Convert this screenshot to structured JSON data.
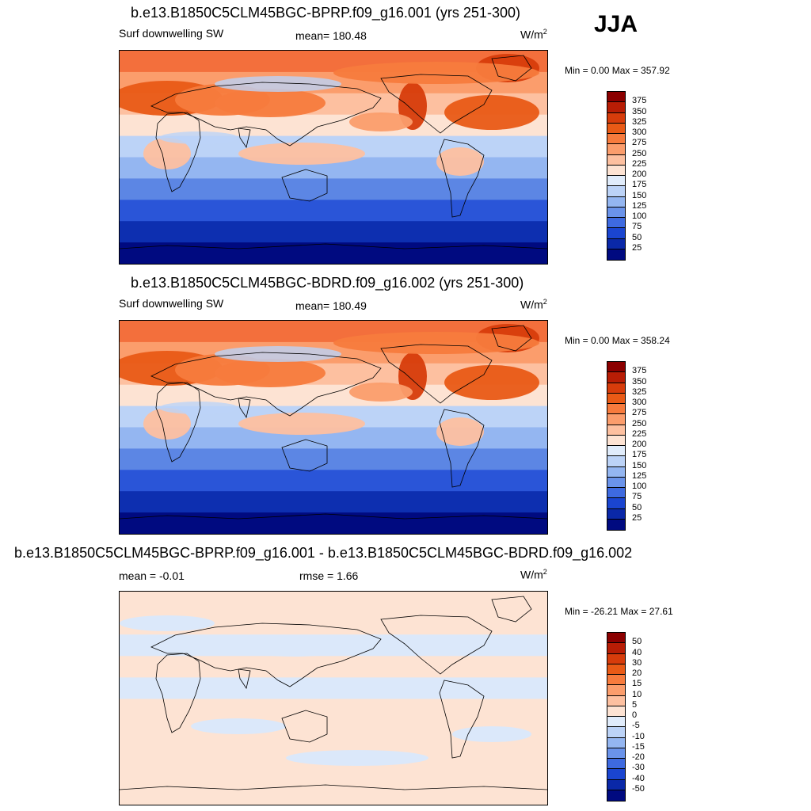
{
  "season": "JJA",
  "panels": [
    {
      "title": "b.e13.B1850C5CLM45BGC-BPRP.f09_g16.001 (yrs 251-300)",
      "left_label": "Surf downwelling SW",
      "mid_label": "mean= 180.48",
      "units_base": "W/m",
      "units_sup": "2",
      "minmax": "Min =   0.00 Max = 357.92",
      "ticks": [
        "375",
        "350",
        "325",
        "300",
        "275",
        "250",
        "225",
        "200",
        "175",
        "150",
        "125",
        "100",
        "75",
        "50",
        "25"
      ],
      "colors": [
        "#8b0000",
        "#b81d05",
        "#d73c0b",
        "#e95a16",
        "#f77b3d",
        "#fb9d6c",
        "#fdc0a0",
        "#fde3d3",
        "#e0ecfb",
        "#bcd3f7",
        "#94b6f1",
        "#6a93ea",
        "#3e6ae0",
        "#1a45d0",
        "#0a28a8",
        "#000a80"
      ],
      "bands": [
        "#f36f3c",
        "#fb9d6c",
        "#fdc0a0",
        "#fde3d3",
        "#bcd3f7",
        "#94b6f1",
        "#5c86e4",
        "#2a55d8",
        "#0d2fb0",
        "#000a80"
      ]
    },
    {
      "title": "b.e13.B1850C5CLM45BGC-BDRD.f09_g16.002 (yrs 251-300)",
      "left_label": "Surf downwelling SW",
      "mid_label": "mean= 180.49",
      "units_base": "W/m",
      "units_sup": "2",
      "minmax": "Min =   0.00 Max = 358.24",
      "ticks": [
        "375",
        "350",
        "325",
        "300",
        "275",
        "250",
        "225",
        "200",
        "175",
        "150",
        "125",
        "100",
        "75",
        "50",
        "25"
      ],
      "colors": [
        "#8b0000",
        "#b81d05",
        "#d73c0b",
        "#e95a16",
        "#f77b3d",
        "#fb9d6c",
        "#fdc0a0",
        "#fde3d3",
        "#e0ecfb",
        "#bcd3f7",
        "#94b6f1",
        "#6a93ea",
        "#3e6ae0",
        "#1a45d0",
        "#0a28a8",
        "#000a80"
      ],
      "bands": [
        "#f36f3c",
        "#fb9d6c",
        "#fdc0a0",
        "#fde3d3",
        "#bcd3f7",
        "#94b6f1",
        "#5c86e4",
        "#2a55d8",
        "#0d2fb0",
        "#000a80"
      ]
    },
    {
      "title": "b.e13.B1850C5CLM45BGC-BPRP.f09_g16.001 - b.e13.B1850C5CLM45BGC-BDRD.f09_g16.002",
      "left_label": "mean =  -0.01",
      "mid_label": "rmse =   1.66",
      "units_base": "W/m",
      "units_sup": "2",
      "minmax": "Min = -26.21 Max =  27.61",
      "ticks": [
        "50",
        "40",
        "30",
        "20",
        "15",
        "10",
        "5",
        "0",
        "-5",
        "-10",
        "-15",
        "-20",
        "-30",
        "-40",
        "-50"
      ],
      "colors": [
        "#8b0000",
        "#b81d05",
        "#d73c0b",
        "#e95a16",
        "#f77b3d",
        "#fb9d6c",
        "#fdc0a0",
        "#fde3d3",
        "#e0ecfb",
        "#bcd3f7",
        "#94b6f1",
        "#6a93ea",
        "#3e6ae0",
        "#1a45d0",
        "#0a28a8",
        "#000a80"
      ],
      "bands": [
        "#fde3d3",
        "#fde3d3",
        "#dbe8fa",
        "#fde3d3",
        "#dbe8fa",
        "#fde3d3",
        "#fde3d3",
        "#fde3d3",
        "#fde3d3",
        "#fde3d3"
      ]
    }
  ]
}
